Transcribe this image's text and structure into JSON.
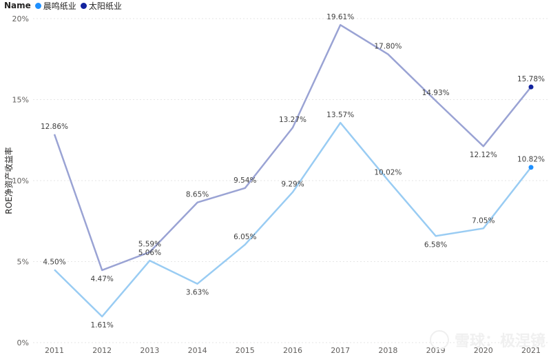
{
  "legend": {
    "title": "Name",
    "items": [
      {
        "label": "晨鸣纸业",
        "color": "#1e90ff"
      },
      {
        "label": "太阳纸业",
        "color": "#12239e"
      }
    ]
  },
  "watermark": "雪球：极涅镜",
  "chart_data": {
    "type": "line",
    "x": [
      "2011",
      "2012",
      "2013",
      "2014",
      "2015",
      "2016",
      "2017",
      "2018",
      "2019",
      "2020",
      "2021"
    ],
    "ylabel": "ROE净资产收益率",
    "xlabel": "",
    "ylim": [
      0,
      20
    ],
    "yticks": [
      "0%",
      "5%",
      "10%",
      "15%",
      "20%"
    ],
    "grid": true,
    "legend_position": "top-left",
    "series": [
      {
        "name": "晨鸣纸业",
        "values": [
          4.5,
          1.61,
          5.06,
          3.63,
          6.05,
          9.29,
          13.57,
          10.02,
          6.58,
          7.05,
          10.82
        ],
        "labels": [
          "4.50%",
          "1.61%",
          "5.06%",
          "3.63%",
          "6.05%",
          "9.29%",
          "13.57%",
          "10.02%",
          "6.58%",
          "7.05%",
          "10.82%"
        ],
        "line_color": "#99ccf3",
        "marker_color": "#1e90ff"
      },
      {
        "name": "太阳纸业",
        "values": [
          12.86,
          4.47,
          5.59,
          8.65,
          9.54,
          13.27,
          19.61,
          17.8,
          14.93,
          12.12,
          15.78
        ],
        "labels": [
          "12.86%",
          "4.47%",
          "5.59%",
          "8.65%",
          "9.54%",
          "13.27%",
          "19.61%",
          "17.80%",
          "14.93%",
          "12.12%",
          "15.78%"
        ],
        "line_color": "#9aa3d4",
        "marker_color": "#12239e"
      }
    ]
  }
}
